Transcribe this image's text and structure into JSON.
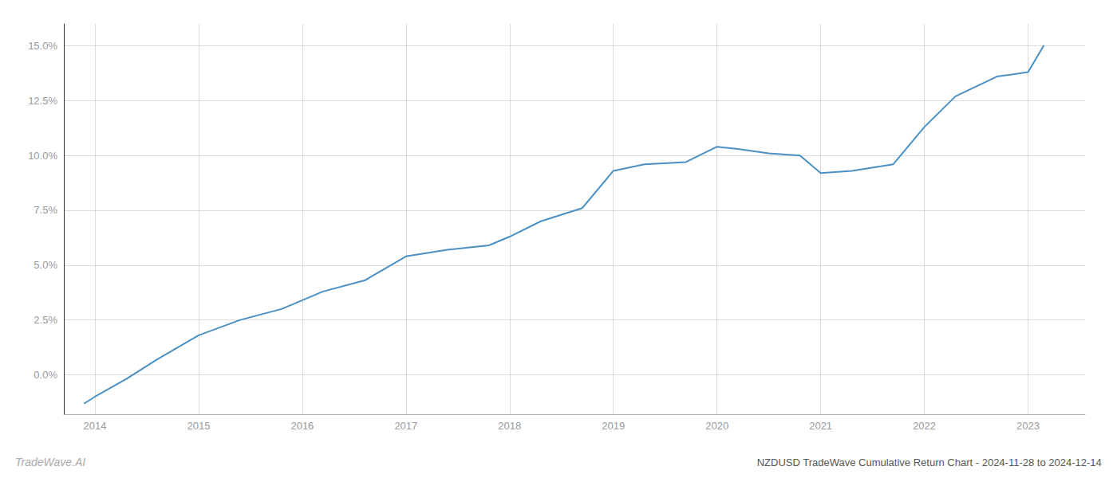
{
  "chart_data": {
    "type": "line",
    "title": "NZDUSD TradeWave Cumulative Return Chart - 2024-11-28 to 2024-12-14",
    "annotations": [
      "TradeWave.AI"
    ],
    "color": "#4a90c4",
    "x": [
      2013.9,
      2014.0,
      2014.3,
      2014.6,
      2015.0,
      2015.4,
      2015.8,
      2016.2,
      2016.6,
      2017.0,
      2017.4,
      2017.8,
      2018.0,
      2018.3,
      2018.7,
      2019.0,
      2019.3,
      2019.7,
      2020.0,
      2020.2,
      2020.5,
      2020.8,
      2021.0,
      2021.3,
      2021.7,
      2022.0,
      2022.3,
      2022.7,
      2023.0,
      2023.15
    ],
    "values": [
      -0.013,
      -0.01,
      -0.002,
      0.007,
      0.018,
      0.025,
      0.03,
      0.038,
      0.043,
      0.054,
      0.057,
      0.059,
      0.063,
      0.07,
      0.076,
      0.093,
      0.096,
      0.097,
      0.104,
      0.103,
      0.101,
      0.1,
      0.092,
      0.093,
      0.096,
      0.113,
      0.127,
      0.136,
      0.138,
      0.15
    ],
    "xlim": [
      2013.7,
      2023.55
    ],
    "ylim": [
      -0.018,
      0.16
    ],
    "xticks": [
      2014,
      2015,
      2016,
      2017,
      2018,
      2019,
      2020,
      2021,
      2022,
      2023
    ],
    "yticks": [
      {
        "value": 0.0,
        "label": "0.0%"
      },
      {
        "value": 0.025,
        "label": "2.5%"
      },
      {
        "value": 0.05,
        "label": "5.0%"
      },
      {
        "value": 0.075,
        "label": "7.5%"
      },
      {
        "value": 0.1,
        "label": "10.0%"
      },
      {
        "value": 0.125,
        "label": "12.5%"
      },
      {
        "value": 0.15,
        "label": "15.0%"
      }
    ],
    "grid": true
  }
}
